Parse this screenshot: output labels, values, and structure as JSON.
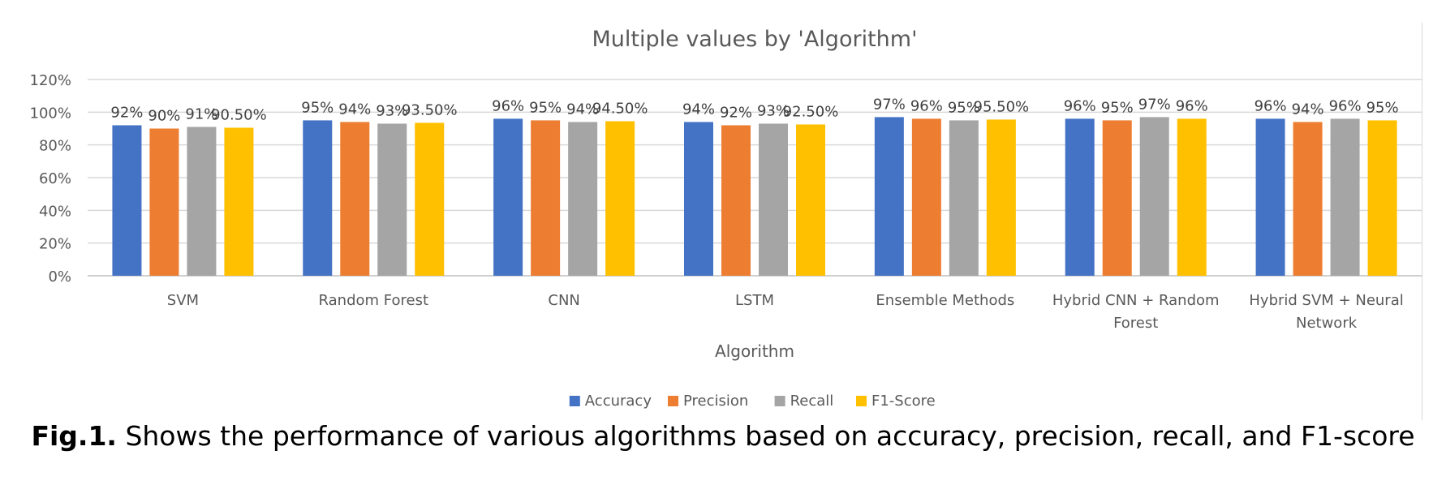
{
  "chart_data": {
    "type": "bar",
    "title": "Multiple values by 'Algorithm'",
    "xlabel": "Algorithm",
    "ylabel": "",
    "ylim": [
      0,
      1.2
    ],
    "yticks": [
      0,
      0.2,
      0.4,
      0.6,
      0.8,
      1.0,
      1.2
    ],
    "ytick_labels": [
      "0%",
      "20%",
      "40%",
      "60%",
      "80%",
      "100%",
      "120%"
    ],
    "grid": true,
    "legend_position": "bottom",
    "categories": [
      [
        "SVM"
      ],
      [
        "Random Forest"
      ],
      [
        "CNN"
      ],
      [
        "LSTM"
      ],
      [
        "Ensemble Methods"
      ],
      [
        "Hybrid CNN + Random",
        "Forest"
      ],
      [
        "Hybrid SVM + Neural",
        "Network"
      ]
    ],
    "series": [
      {
        "name": "Accuracy",
        "color": "#4472C4",
        "values": [
          0.92,
          0.95,
          0.96,
          0.94,
          0.97,
          0.96,
          0.96
        ],
        "labels": [
          "92%",
          "95%",
          "96%",
          "94%",
          "97%",
          "96%",
          "96%"
        ]
      },
      {
        "name": "Precision",
        "color": "#ED7D31",
        "values": [
          0.9,
          0.94,
          0.95,
          0.92,
          0.96,
          0.95,
          0.94
        ],
        "labels": [
          "90%",
          "94%",
          "95%",
          "92%",
          "96%",
          "95%",
          "94%"
        ]
      },
      {
        "name": "Recall",
        "color": "#A5A5A5",
        "values": [
          0.91,
          0.93,
          0.94,
          0.93,
          0.95,
          0.97,
          0.96
        ],
        "labels": [
          "91%",
          "93%",
          "94%",
          "93%",
          "95%",
          "97%",
          "96%"
        ]
      },
      {
        "name": "F1-Score",
        "color": "#FFC000",
        "values": [
          0.905,
          0.935,
          0.945,
          0.925,
          0.955,
          0.96,
          0.95
        ],
        "labels": [
          "90.50%",
          "93.50%",
          "94.50%",
          "92.50%",
          "95.50%",
          "96%",
          "95%"
        ]
      }
    ]
  },
  "caption": {
    "prefix": "Fig.1.",
    "text": " Shows the performance of various algorithms based on accuracy, precision, recall, and F1-score"
  }
}
